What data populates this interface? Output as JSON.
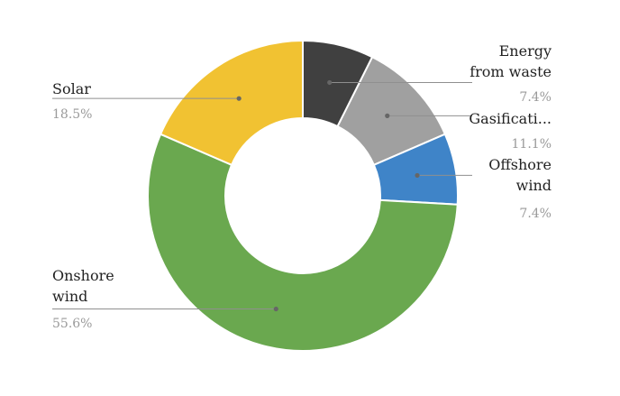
{
  "chart_data": {
    "type": "pie",
    "variant": "donut",
    "title": "",
    "slices": [
      {
        "name_lines": [
          "Energy",
          "from waste"
        ],
        "value": 7.4,
        "label": "7.4%",
        "color": "#404040"
      },
      {
        "name_lines": [
          "Gasificati..."
        ],
        "value": 11.1,
        "label": "11.1%",
        "color": "#a0a0a0"
      },
      {
        "name_lines": [
          "Offshore",
          "wind"
        ],
        "value": 7.4,
        "label": "7.4%",
        "color": "#3f84c8"
      },
      {
        "name_lines": [
          "Onshore",
          "wind"
        ],
        "value": 55.6,
        "label": "55.6%",
        "color": "#6aa84f"
      },
      {
        "name_lines": [
          "Solar"
        ],
        "value": 18.5,
        "label": "18.5%",
        "color": "#f1c232"
      }
    ],
    "start_angle_deg": 0,
    "direction": "clockwise",
    "legend": "none"
  }
}
